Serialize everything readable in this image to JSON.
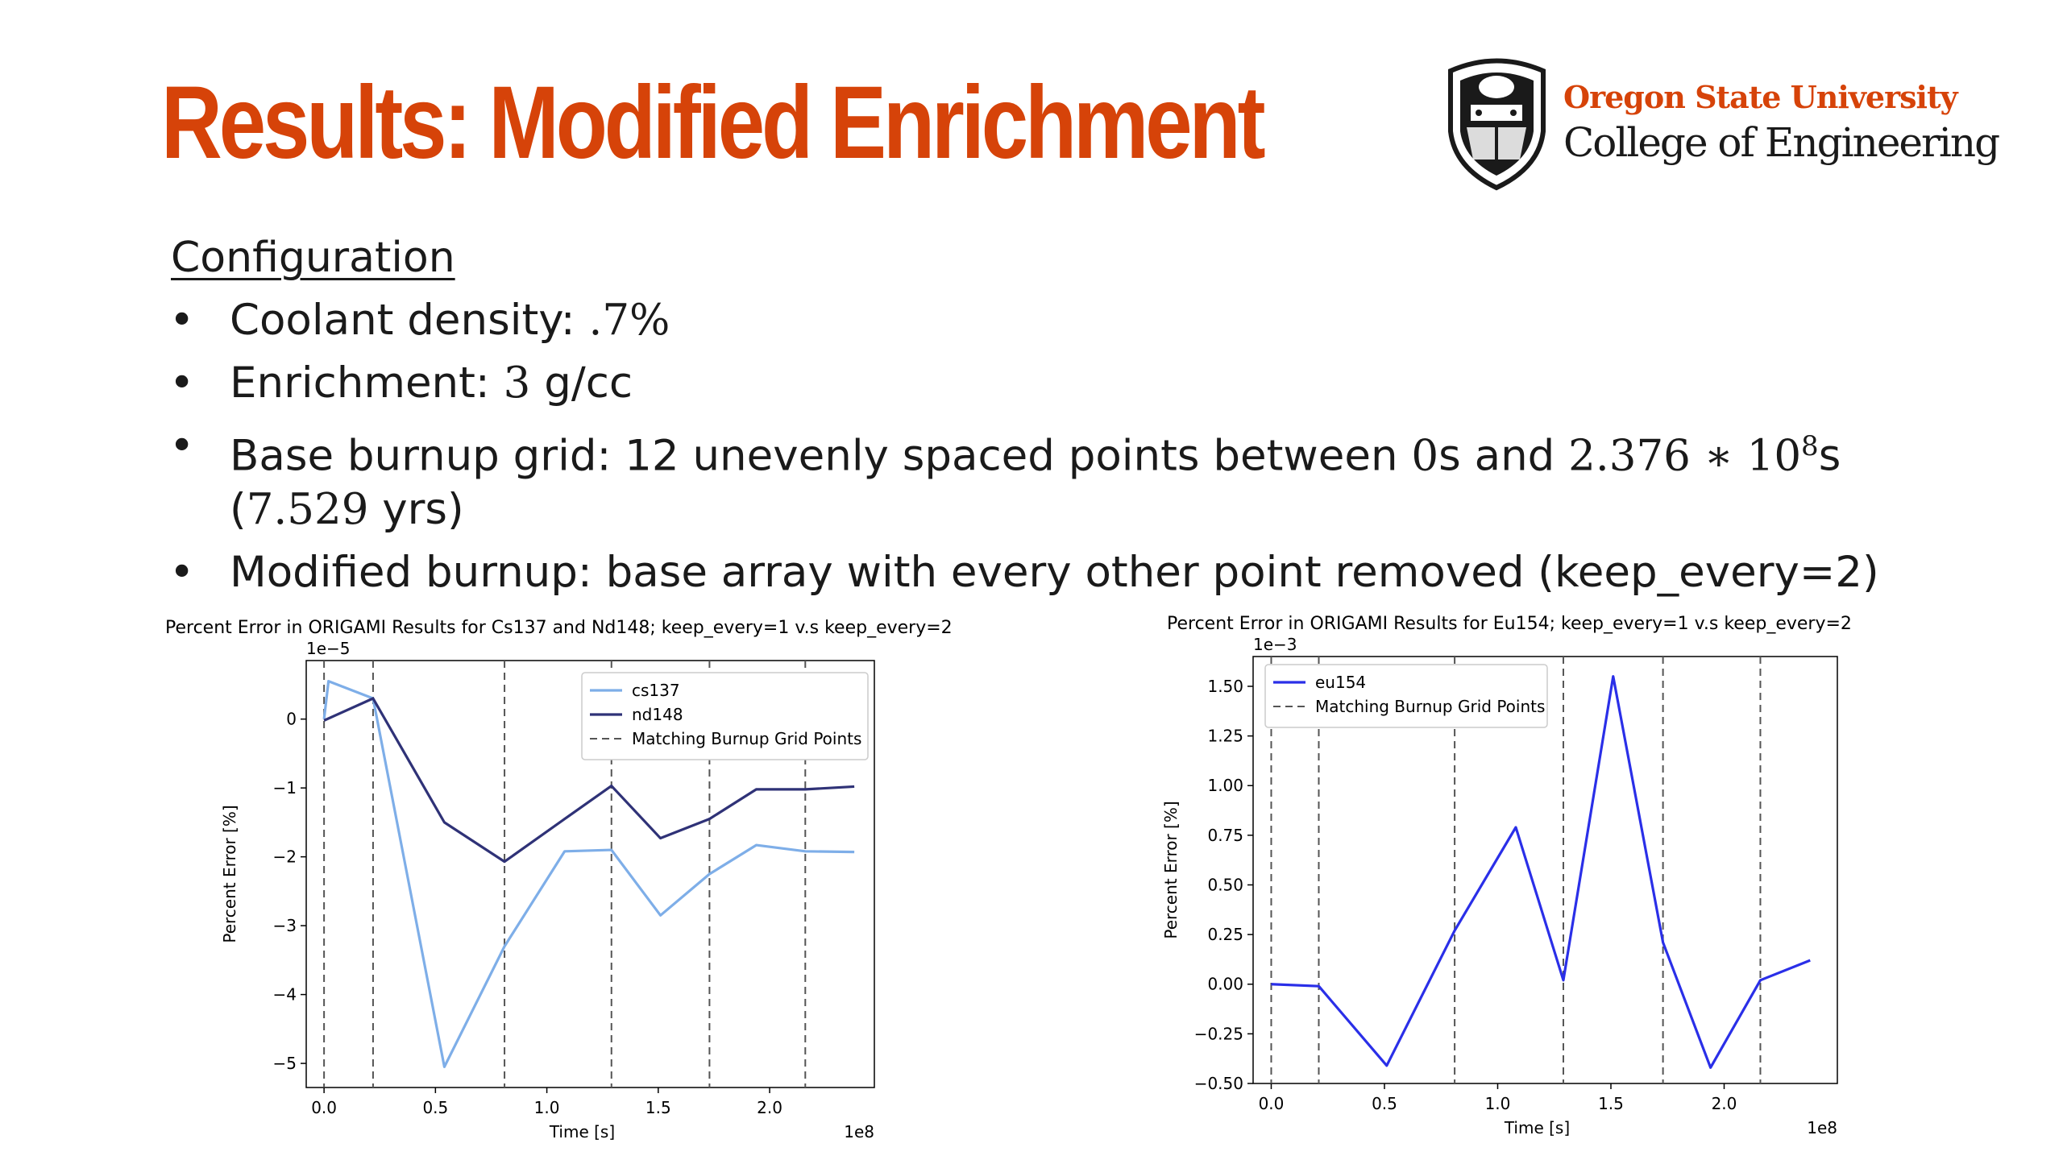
{
  "slide": {
    "title": "Results: Modified Enrichment",
    "logo": {
      "university": "Oregon State University",
      "college": "College of Engineering"
    },
    "config_heading": "Configuration",
    "bullets": [
      {
        "label": "Coolant density: ",
        "value": ".7%"
      },
      {
        "label": "Enrichment: ",
        "value": "3",
        "unit": " g/cc"
      },
      {
        "label": "Base burnup grid: 12 unevenly spaced points between ",
        "v1": "0",
        "mid": "s and ",
        "v2": "2.376 ∗ 10",
        "sup": "8",
        "after": "s",
        "line2_open": "(",
        "v3": "7.529",
        "line2_close": " yrs)"
      },
      {
        "label": "Modified burnup: base array with every other point removed (keep_every=2)"
      }
    ],
    "accent_color": "#d64309"
  },
  "chart_data": [
    {
      "type": "line",
      "title": "Percent Error in ORIGAMI Results for Cs137 and Nd148; keep_every=1 v.s keep_every=2",
      "xlabel": "Time [s]",
      "ylabel": "Percent Error [%]",
      "x_multiplier": "1e8",
      "y_multiplier": "1e−5",
      "xlim": [
        -0.08,
        2.47
      ],
      "ylim": [
        -5.35,
        0.85
      ],
      "xticks": [
        0.0,
        0.5,
        1.0,
        1.5,
        2.0
      ],
      "xtick_labels": [
        "0.0",
        "0.5",
        "1.0",
        "1.5",
        "2.0"
      ],
      "yticks": [
        0,
        -1,
        -2,
        -3,
        -4,
        -5
      ],
      "ytick_labels": [
        "0",
        "−1",
        "−2",
        "−3",
        "−4",
        "−5"
      ],
      "vlines": [
        0.0,
        0.22,
        0.81,
        1.29,
        1.73,
        2.16
      ],
      "legend_position": "top-right",
      "series": [
        {
          "name": "cs137",
          "color": "#7eaee8",
          "x": [
            0.0,
            0.02,
            0.22,
            0.54,
            0.81,
            1.08,
            1.29,
            1.51,
            1.73,
            1.94,
            2.16,
            2.38
          ],
          "y": [
            0.0,
            0.55,
            0.3,
            -5.05,
            -3.3,
            -1.92,
            -1.9,
            -2.85,
            -2.25,
            -1.83,
            -1.92,
            -1.93
          ]
        },
        {
          "name": "nd148",
          "color": "#2f3277",
          "x": [
            0.0,
            0.22,
            0.54,
            0.81,
            1.08,
            1.29,
            1.51,
            1.73,
            1.94,
            2.16,
            2.38
          ],
          "y": [
            -0.02,
            0.3,
            -1.5,
            -2.07,
            -1.45,
            -0.97,
            -1.73,
            -1.45,
            -1.02,
            -1.02,
            -0.98
          ]
        }
      ],
      "vline_label": "Matching Burnup Grid Points"
    },
    {
      "type": "line",
      "title": "Percent Error in ORIGAMI Results for Eu154; keep_every=1 v.s keep_every=2",
      "xlabel": "Time [s]",
      "ylabel": "Percent Error [%]",
      "x_multiplier": "1e8",
      "y_multiplier": "1e−3",
      "xlim": [
        -0.08,
        2.5
      ],
      "ylim": [
        -0.5,
        1.65
      ],
      "xticks": [
        0.0,
        0.5,
        1.0,
        1.5,
        2.0
      ],
      "xtick_labels": [
        "0.0",
        "0.5",
        "1.0",
        "1.5",
        "2.0"
      ],
      "yticks": [
        1.5,
        1.25,
        1.0,
        0.75,
        0.5,
        0.25,
        0.0,
        -0.25,
        -0.5
      ],
      "ytick_labels": [
        "1.50",
        "1.25",
        "1.00",
        "0.75",
        "0.50",
        "0.25",
        "0.00",
        "−0.25",
        "−0.50"
      ],
      "vlines": [
        0.0,
        0.21,
        0.81,
        1.29,
        1.73,
        2.16
      ],
      "legend_position": "top-left",
      "series": [
        {
          "name": "eu154",
          "color": "#2a2fe8",
          "x": [
            0.0,
            0.21,
            0.51,
            0.81,
            1.08,
            1.29,
            1.51,
            1.73,
            1.94,
            2.16,
            2.38
          ],
          "y": [
            0.0,
            -0.01,
            -0.41,
            0.27,
            0.79,
            0.02,
            1.55,
            0.21,
            -0.42,
            0.02,
            0.12
          ]
        }
      ],
      "vline_label": "Matching Burnup Grid Points"
    }
  ]
}
